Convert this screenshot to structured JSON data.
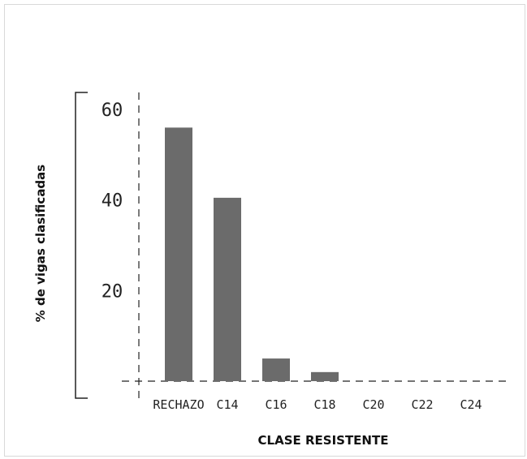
{
  "chart_data": {
    "type": "bar",
    "title": "",
    "xlabel": "CLASE RESISTENTE",
    "ylabel": "% de vigas clasificadas",
    "categories": [
      "RECHAZO",
      "C14",
      "C16",
      "C18",
      "C20",
      "C22",
      "C24"
    ],
    "values": [
      56,
      40.5,
      5,
      2,
      0,
      0,
      0
    ],
    "yticks": [
      20,
      40,
      60
    ],
    "ylim": [
      0,
      60
    ],
    "grid": false,
    "legend": "none",
    "bar_color": "#6b6b6b",
    "axis_color": "#222222"
  }
}
